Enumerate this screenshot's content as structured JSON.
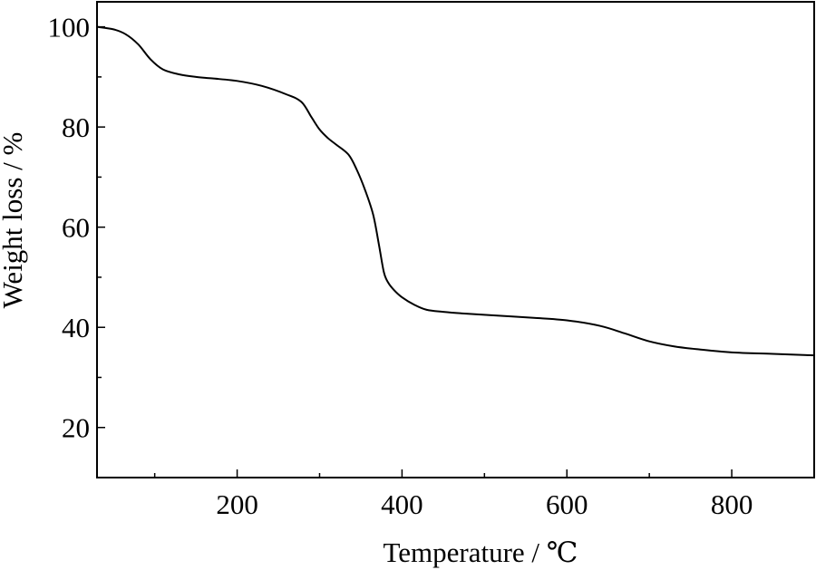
{
  "chart_data": {
    "type": "line",
    "title": "",
    "xlabel": "Temperature / ℃",
    "ylabel": "Weight loss / %",
    "xlim": [
      30,
      900
    ],
    "ylim": [
      10,
      105
    ],
    "x_ticks": [
      200,
      400,
      600,
      800
    ],
    "x_tick_labels": [
      "200",
      "400",
      "600",
      "800"
    ],
    "x_minor_ticks": [
      100,
      300,
      500,
      700
    ],
    "y_ticks": [
      20,
      40,
      60,
      80,
      100
    ],
    "y_tick_labels": [
      "20",
      "40",
      "60",
      "80",
      "100"
    ],
    "y_minor_ticks": [
      30,
      50,
      70,
      90
    ],
    "grid": false,
    "legend": "none",
    "line_color": "#000000",
    "series": [
      {
        "x": [
          30,
          50,
          65,
          80,
          95,
          110,
          130,
          150,
          170,
          200,
          230,
          260,
          278,
          290,
          300,
          310,
          320,
          335,
          345,
          355,
          365,
          372,
          378,
          383,
          390,
          400,
          415,
          430,
          450,
          480,
          520,
          560,
          600,
          640,
          670,
          700,
          730,
          760,
          800,
          850,
          900
        ],
        "y": [
          100,
          99.5,
          98.5,
          96.5,
          93.5,
          91.5,
          90.5,
          90.0,
          89.7,
          89.2,
          88.2,
          86.5,
          85.0,
          82.0,
          79.5,
          77.8,
          76.5,
          74.5,
          71.5,
          67.5,
          62.5,
          56.5,
          51.0,
          49.0,
          47.5,
          46.0,
          44.5,
          43.5,
          43.1,
          42.7,
          42.3,
          41.9,
          41.4,
          40.3,
          38.8,
          37.2,
          36.2,
          35.6,
          35.0,
          34.7,
          34.4
        ]
      }
    ]
  }
}
